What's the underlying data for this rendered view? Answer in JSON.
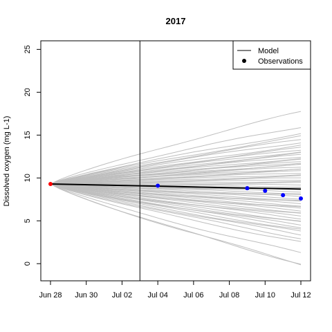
{
  "chart_data": {
    "type": "line",
    "title": "2017",
    "xlabel": "",
    "ylabel": "Dissolved oxygen (mg L-1)",
    "xlim": [
      "2017-06-28",
      "2017-07-12"
    ],
    "ylim": [
      -2,
      26
    ],
    "x_ticks": [
      "2017-06-28",
      "2017-06-30",
      "2017-07-02",
      "2017-07-04",
      "2017-07-06",
      "2017-07-08",
      "2017-07-10",
      "2017-07-12"
    ],
    "x_tick_labels": [
      "Jun 28",
      "Jun 30",
      "Jul 02",
      "Jul 04",
      "Jul 06",
      "Jul 08",
      "Jul 10",
      "Jul 12"
    ],
    "y_ticks": [
      0,
      5,
      10,
      15,
      20,
      25
    ],
    "y_tick_labels": [
      "0",
      "5",
      "10",
      "15",
      "20",
      "25"
    ],
    "vline": "2017-07-03",
    "ensemble": {
      "color": "#bebebe",
      "start_value": 9.3,
      "end_values": [
        17.7,
        16.0,
        15.2,
        14.8,
        14.5,
        14.2,
        13.8,
        13.5,
        13.3,
        13.1,
        12.9,
        12.7,
        12.5,
        12.3,
        12.1,
        11.9,
        11.8,
        11.6,
        11.5,
        11.3,
        11.1,
        11.0,
        10.8,
        10.6,
        10.4,
        10.2,
        10.0,
        9.8,
        9.6,
        9.4,
        9.2,
        9.0,
        8.8,
        8.6,
        8.4,
        8.2,
        8.0,
        7.8,
        7.6,
        7.4,
        7.2,
        7.0,
        6.8,
        6.6,
        6.4,
        6.2,
        6.0,
        5.8,
        5.5,
        5.3,
        5.0,
        4.8,
        4.5,
        4.3,
        4.0,
        3.7,
        3.4,
        3.0,
        2.5,
        1.2,
        0.0,
        0.0
      ]
    },
    "series": [
      {
        "name": "Model",
        "color": "#000000",
        "x": [
          "2017-06-28",
          "2017-07-12"
        ],
        "y": [
          9.3,
          8.7
        ]
      }
    ],
    "observations": {
      "name": "Observations",
      "initial": {
        "x": "2017-06-28",
        "y": 9.3,
        "color": "#ff0000"
      },
      "color": "#0000ff",
      "x": [
        "2017-07-04",
        "2017-07-09",
        "2017-07-10",
        "2017-07-11",
        "2017-07-12"
      ],
      "y": [
        9.1,
        8.8,
        8.5,
        8.0,
        7.6
      ]
    },
    "legend": {
      "position": "top-right",
      "entries": [
        {
          "label": "Model",
          "kind": "line"
        },
        {
          "label": "Observations",
          "kind": "point"
        }
      ]
    }
  }
}
